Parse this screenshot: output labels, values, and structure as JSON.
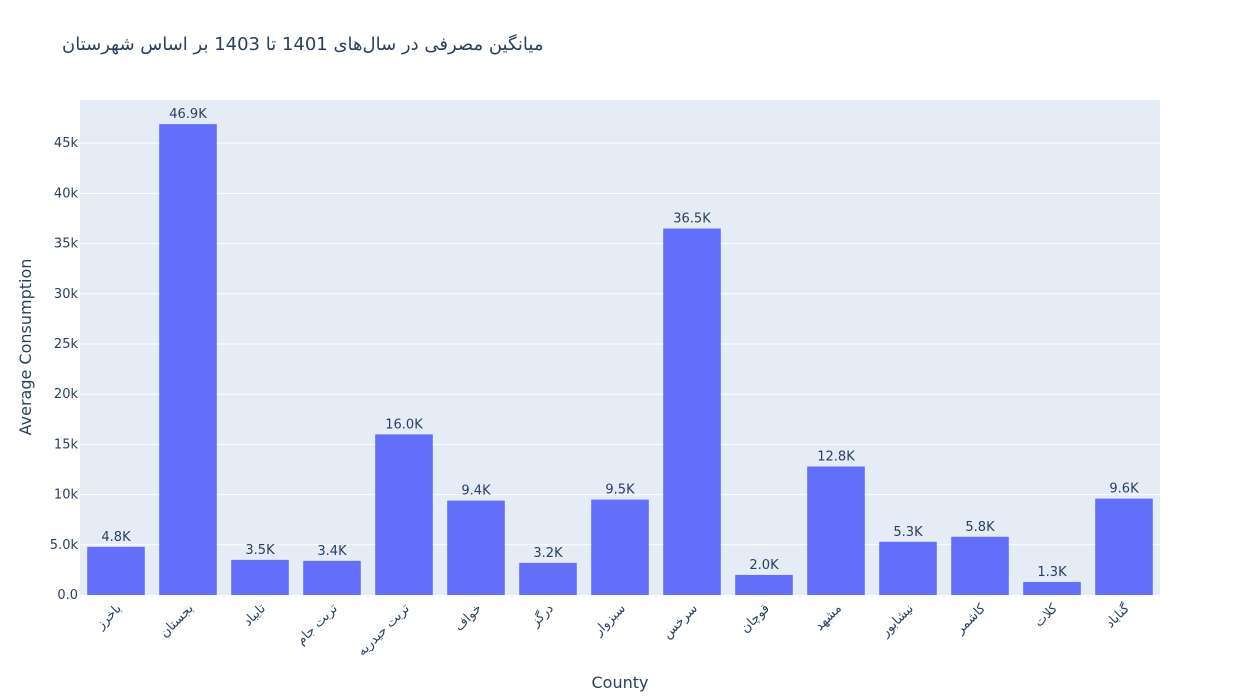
{
  "chart_data": {
    "type": "bar",
    "title": "میانگین مصرفی در سال‌های 1401 تا 1403 بر اساس شهرستان",
    "xlabel": "County",
    "ylabel": "Average Consumption",
    "categories": [
      "باخرز",
      "بجستان",
      "تایباد",
      "تربت جام",
      "تربت حیدریه",
      "خواف",
      "درگز",
      "سبزوار",
      "سرخس",
      "قوچان",
      "مشهد",
      "نیشابور",
      "کاشمر",
      "کلات",
      "گناباد"
    ],
    "values": [
      4800,
      46900,
      3500,
      3400,
      16000,
      9400,
      3200,
      9500,
      36500,
      2000,
      12800,
      5300,
      5800,
      1300,
      9600
    ],
    "data_labels": [
      "4.8K",
      "46.9K",
      "3.5K",
      "3.4K",
      "16.0K",
      "9.4K",
      "3.2K",
      "9.5K",
      "36.5K",
      "2.0K",
      "12.8K",
      "5.3K",
      "5.8K",
      "1.3K",
      "9.6K"
    ],
    "y_ticks": [
      0,
      5000,
      10000,
      15000,
      20000,
      25000,
      30000,
      35000,
      40000,
      45000
    ],
    "y_tick_labels": [
      "0.0",
      "5.0k",
      "10k",
      "15k",
      "20k",
      "25k",
      "30k",
      "35k",
      "40k",
      "45k"
    ],
    "ylim": [
      0,
      49300
    ],
    "grid": true,
    "colors": {
      "bar": "#636efa",
      "plot_bg": "#e5ecf6",
      "grid": "#ffffff",
      "text": "#2a3f5f"
    }
  }
}
